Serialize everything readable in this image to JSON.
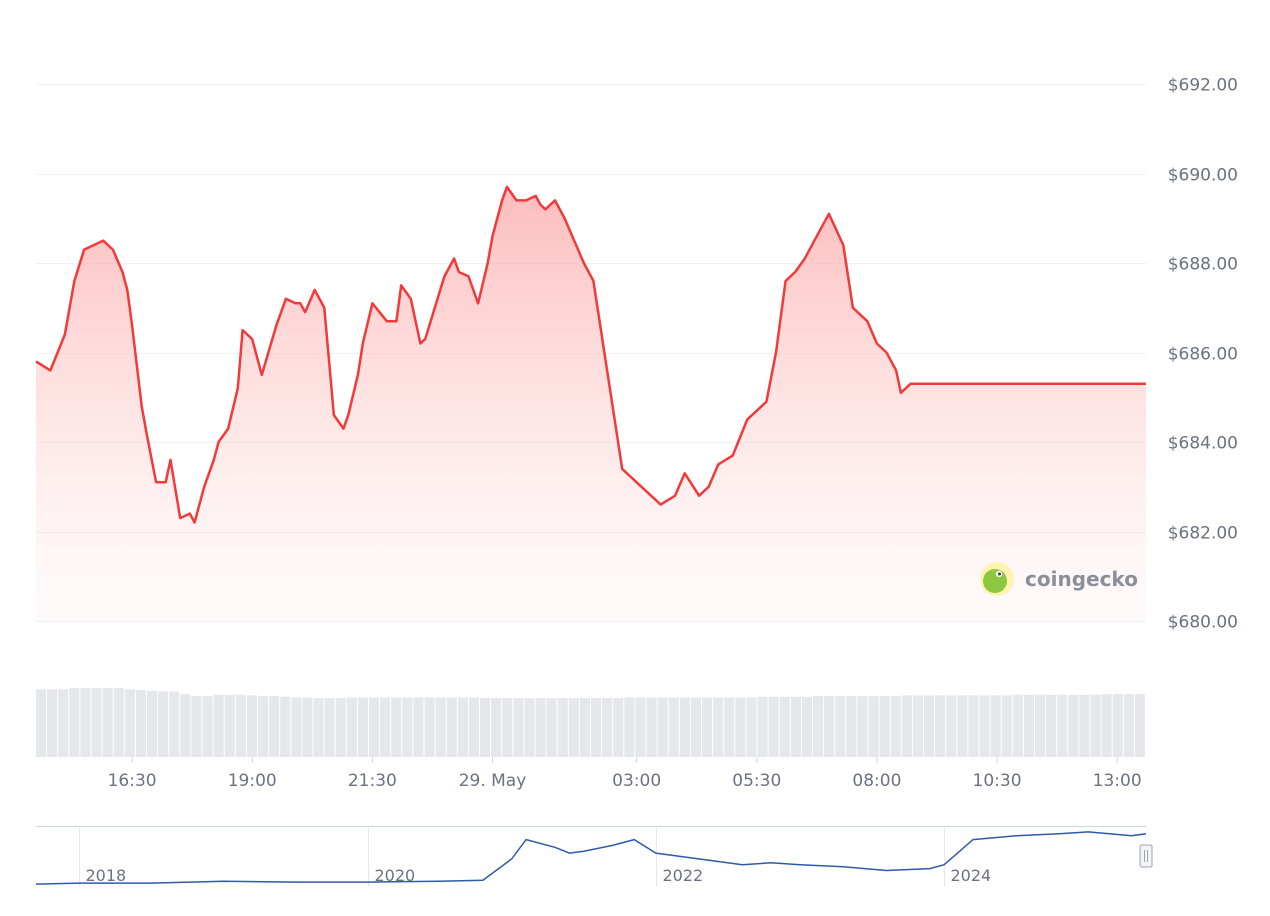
{
  "chart_data": [
    {
      "type": "area",
      "title": "",
      "xlabel": "",
      "ylabel": "",
      "ylim": [
        680,
        692
      ],
      "y_ticks": [
        680,
        682,
        684,
        686,
        688,
        690,
        692
      ],
      "y_tick_labels": [
        "$680.00",
        "$682.00",
        "$684.00",
        "$686.00",
        "$688.00",
        "$690.00",
        "$692.00"
      ],
      "x_ticks": [
        {
          "x": 2.0,
          "label": "16:30"
        },
        {
          "x": 4.5,
          "label": "19:00"
        },
        {
          "x": 7.0,
          "label": "21:30"
        },
        {
          "x": 9.5,
          "label": "29. May"
        },
        {
          "x": 12.5,
          "label": "03:00"
        },
        {
          "x": 15.0,
          "label": "05:30"
        },
        {
          "x": 17.5,
          "label": "08:00"
        },
        {
          "x": 20.0,
          "label": "10:30"
        },
        {
          "x": 22.5,
          "label": "13:00"
        }
      ],
      "grid": true,
      "series": [
        {
          "color": "#f23a3a",
          "fill": "#fde2e2",
          "x": [
            0.0,
            0.3,
            0.6,
            0.8,
            1.0,
            1.2,
            1.4,
            1.6,
            1.8,
            1.9,
            2.0,
            2.2,
            2.3,
            2.5,
            2.7,
            2.8,
            3.0,
            3.2,
            3.3,
            3.5,
            3.6,
            3.7,
            3.8,
            4.0,
            4.2,
            4.3,
            4.5,
            4.7,
            5.0,
            5.2,
            5.4,
            5.5,
            5.6,
            5.8,
            6.0,
            6.2,
            6.4,
            6.5,
            6.7,
            6.8,
            7.0,
            7.3,
            7.5,
            7.6,
            7.8,
            8.0,
            8.1,
            8.3,
            8.5,
            8.7,
            8.8,
            9.0,
            9.2,
            9.4,
            9.5,
            9.7,
            9.8,
            10.0,
            10.2,
            10.4,
            10.5,
            10.6,
            10.8,
            11.0,
            11.2,
            11.4,
            11.6,
            11.8,
            12.0,
            12.2,
            12.5,
            12.8,
            13.0,
            13.3,
            13.5,
            13.8,
            14.0,
            14.2,
            14.5,
            14.8,
            15.0,
            15.2,
            15.4,
            15.6,
            15.8,
            16.0,
            16.3,
            16.5,
            16.8,
            17.0,
            17.3,
            17.5,
            17.7,
            17.9,
            18.0,
            18.2,
            18.5,
            18.8,
            19.0,
            19.2,
            19.5,
            19.8,
            20.0,
            20.2,
            20.5,
            20.8,
            21.0,
            21.2,
            21.4,
            21.6,
            21.8,
            22.0,
            22.2,
            22.4,
            22.5,
            22.8,
            23.0,
            23.1
          ],
          "values": [
            685.8,
            685.6,
            686.4,
            687.6,
            688.3,
            688.4,
            688.5,
            688.3,
            687.8,
            687.4,
            686.6,
            684.8,
            684.2,
            683.1,
            683.1,
            683.6,
            682.3,
            682.4,
            682.2,
            683.0,
            683.3,
            683.6,
            684.0,
            684.3,
            685.2,
            686.5,
            686.3,
            685.5,
            686.6,
            687.2,
            687.1,
            687.1,
            686.9,
            687.4,
            687.0,
            684.6,
            684.3,
            684.6,
            685.5,
            686.2,
            687.1,
            686.7,
            686.7,
            687.5,
            687.2,
            686.2,
            686.3,
            687.0,
            687.7,
            688.1,
            687.8,
            687.7,
            687.1,
            688.0,
            688.6,
            689.4,
            689.7,
            689.4,
            689.4,
            689.5,
            689.3,
            689.2,
            689.4,
            689.0,
            688.5,
            688.0,
            687.6,
            686.2,
            684.8,
            683.4,
            683.1,
            682.8,
            682.6,
            682.8,
            683.3,
            682.8,
            683.0,
            683.5,
            683.7,
            684.5,
            684.7,
            684.9,
            686.0,
            687.6,
            687.8,
            688.1,
            688.7,
            689.1,
            688.4,
            687.0,
            686.7,
            686.2,
            686.0,
            685.6,
            685.1,
            685.3,
            685.3,
            685.3,
            685.3,
            685.3,
            685.3,
            685.3,
            685.3,
            685.3,
            685.3,
            685.3,
            685.3,
            685.3,
            685.3,
            685.3,
            685.3,
            685.3,
            685.3,
            685.3,
            685.3,
            685.3,
            685.3,
            685.3
          ]
        }
      ]
    },
    {
      "type": "bar",
      "title": "",
      "color": "#e5e7eb",
      "values": [
        1.0,
        1.0,
        1.0,
        1.02,
        1.02,
        1.02,
        1.02,
        1.02,
        1.0,
        0.99,
        0.98,
        0.97,
        0.97,
        0.93,
        0.9,
        0.9,
        0.92,
        0.92,
        0.92,
        0.91,
        0.9,
        0.9,
        0.89,
        0.88,
        0.88,
        0.87,
        0.87,
        0.87,
        0.88,
        0.88,
        0.88,
        0.88,
        0.88,
        0.88,
        0.88,
        0.88,
        0.88,
        0.88,
        0.88,
        0.88,
        0.87,
        0.87,
        0.87,
        0.87,
        0.87,
        0.87,
        0.87,
        0.87,
        0.87,
        0.87,
        0.87,
        0.87,
        0.87,
        0.88,
        0.88,
        0.88,
        0.88,
        0.88,
        0.88,
        0.88,
        0.88,
        0.88,
        0.88,
        0.88,
        0.88,
        0.89,
        0.89,
        0.89,
        0.89,
        0.89,
        0.9,
        0.9,
        0.9,
        0.9,
        0.9,
        0.9,
        0.9,
        0.9,
        0.91,
        0.91,
        0.91,
        0.91,
        0.91,
        0.91,
        0.91,
        0.91,
        0.91,
        0.91,
        0.92,
        0.92,
        0.92,
        0.92,
        0.92,
        0.92,
        0.92,
        0.92,
        0.93,
        0.93,
        0.93,
        0.93
      ]
    },
    {
      "type": "line",
      "title": "",
      "color": "#2f5aa8",
      "x_ticks": [
        {
          "x": 2018,
          "label": "2018"
        },
        {
          "x": 2020,
          "label": "2020"
        },
        {
          "x": 2022,
          "label": "2022"
        },
        {
          "x": 2024,
          "label": "2024"
        }
      ],
      "x": [
        2017.7,
        2018.0,
        2018.5,
        2019.0,
        2019.5,
        2020.0,
        2020.5,
        2020.8,
        2021.0,
        2021.1,
        2021.3,
        2021.4,
        2021.5,
        2021.7,
        2021.85,
        2022.0,
        2022.2,
        2022.4,
        2022.6,
        2022.8,
        2023.0,
        2023.3,
        2023.6,
        2023.9,
        2024.0,
        2024.2,
        2024.5,
        2024.8,
        2025.0,
        2025.3,
        2025.4
      ],
      "values": [
        2,
        3,
        3,
        5,
        4,
        4,
        5,
        6,
        28,
        48,
        40,
        34,
        36,
        42,
        48,
        34,
        30,
        26,
        22,
        24,
        22,
        20,
        16,
        18,
        22,
        48,
        52,
        54,
        56,
        52,
        54
      ]
    }
  ],
  "watermark": {
    "brand": "coingecko",
    "logo_colors": [
      "#8dc63f",
      "#fcd34d"
    ]
  },
  "colors": {
    "gridline": "#eef0f3",
    "axis_text": "#6b7280",
    "volume_bar": "#e5e7eb",
    "navigator_frame": "#cfd4dc"
  }
}
